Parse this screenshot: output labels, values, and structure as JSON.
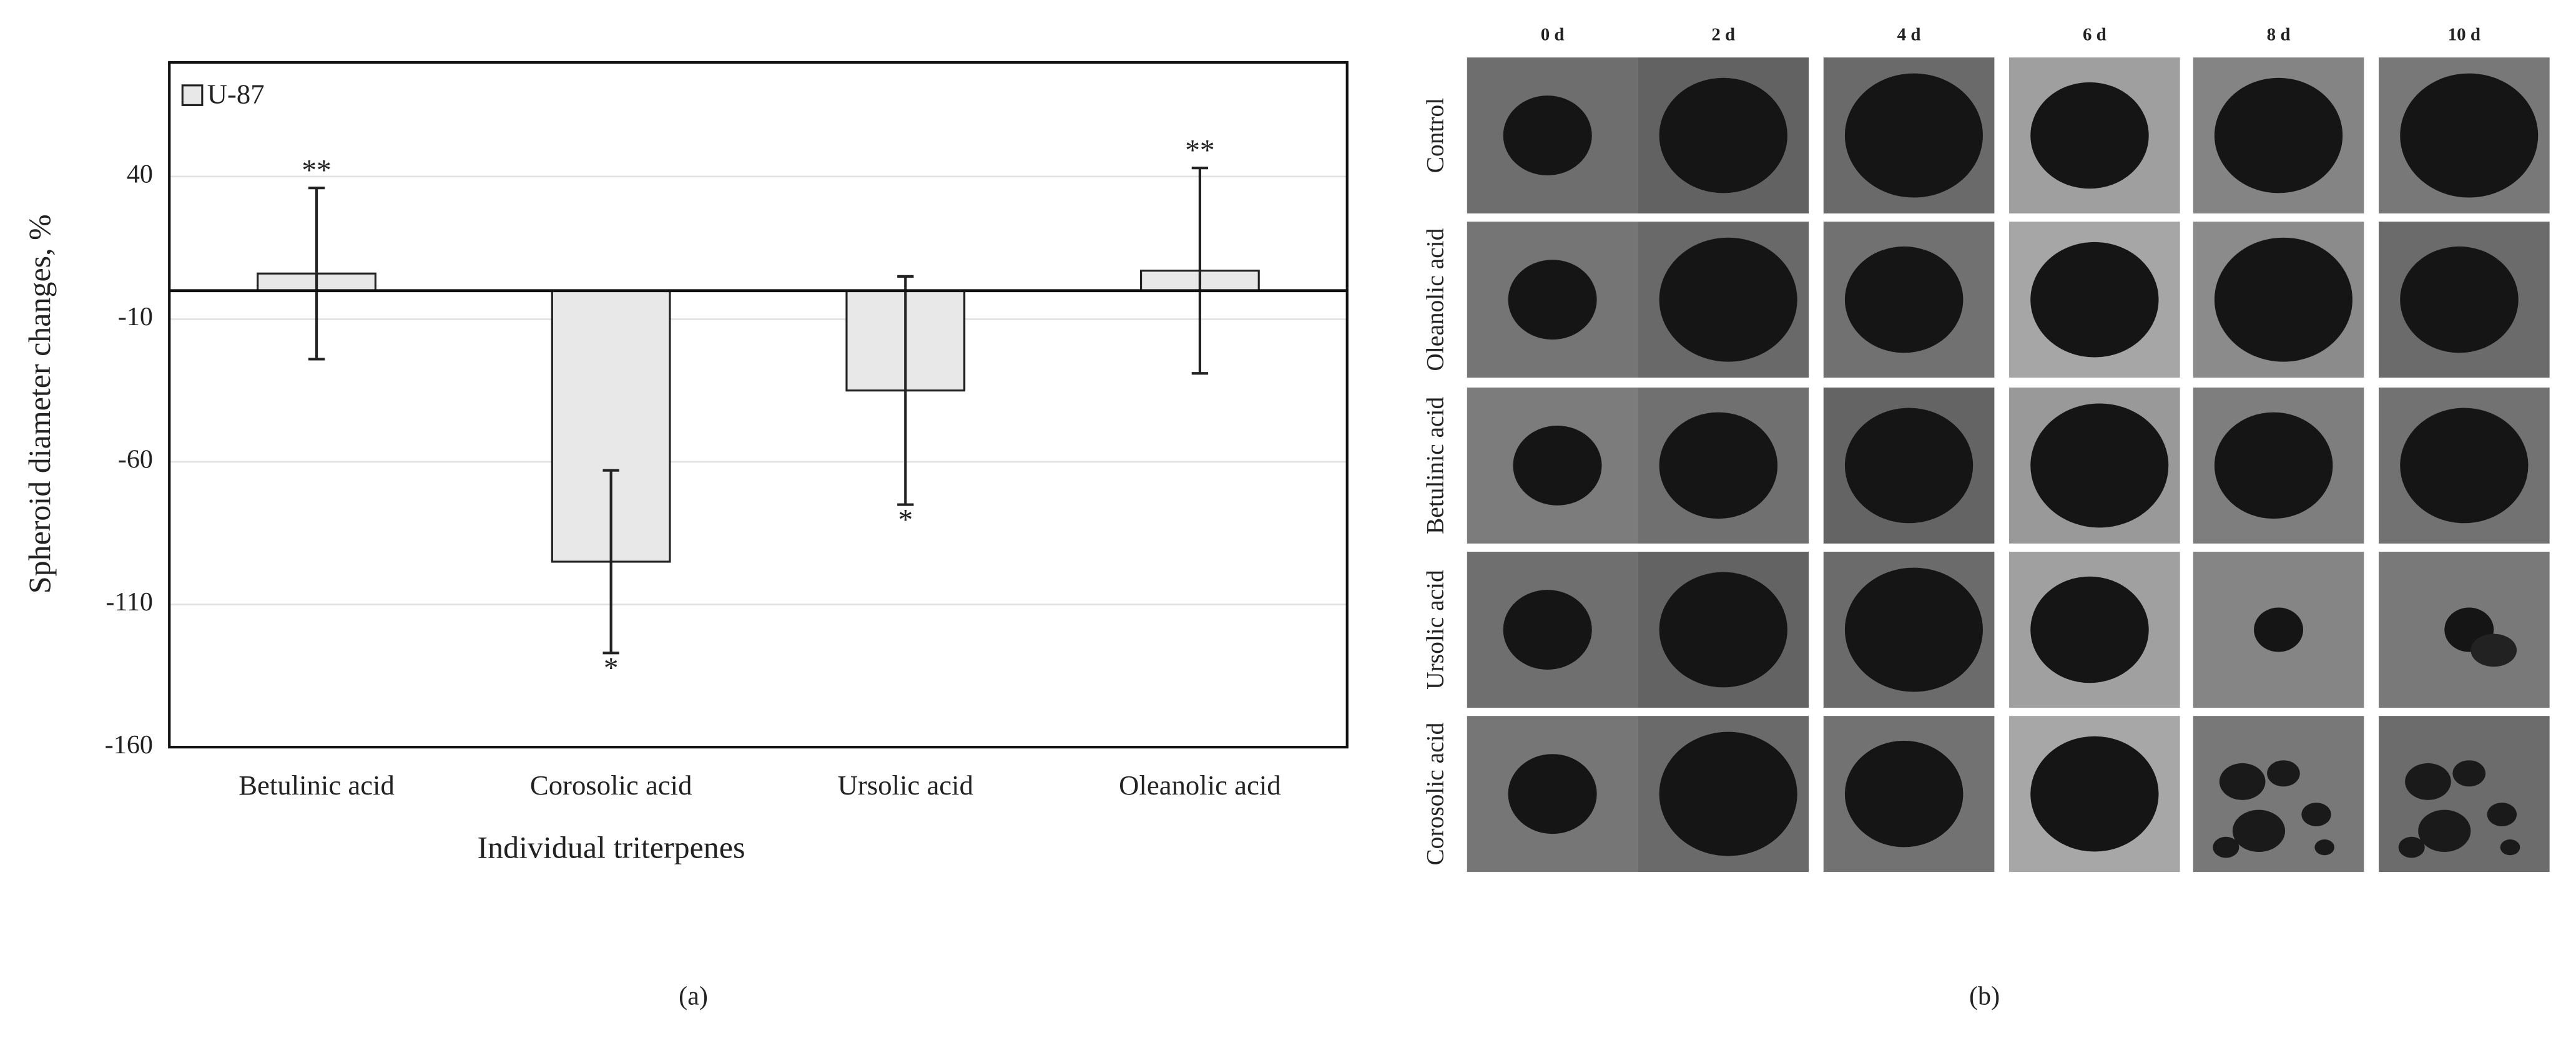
{
  "chart_data": {
    "type": "bar",
    "y_label": "Spheroid diameter changes, %",
    "x_label": "Individual triterpenes",
    "categories": [
      "Betulinic acid",
      "Corosolic acid",
      "Ursolic acid",
      "Oleanolic acid"
    ],
    "series": [
      {
        "name": "U-87",
        "color": "#e8e8e8",
        "values": [
          6,
          -95,
          -35,
          7
        ],
        "errors": [
          30,
          32,
          40,
          36
        ],
        "annotations": [
          "**",
          "*",
          "*",
          "**"
        ]
      }
    ],
    "ylim": [
      -160,
      80
    ],
    "yticks": [
      -160,
      -110,
      -60,
      -10,
      40
    ],
    "grid": true,
    "legend": "top-left"
  },
  "panel_b": {
    "columns": [
      "0 d",
      "2 d",
      "4 d",
      "6 d",
      "8 d",
      "10 d"
    ],
    "rows": [
      "Control",
      "Oleanolic acid",
      "Betulinic acid",
      "Ursolic acid",
      "Corosolic acid"
    ]
  },
  "captions": [
    "(a)",
    "(b)"
  ]
}
